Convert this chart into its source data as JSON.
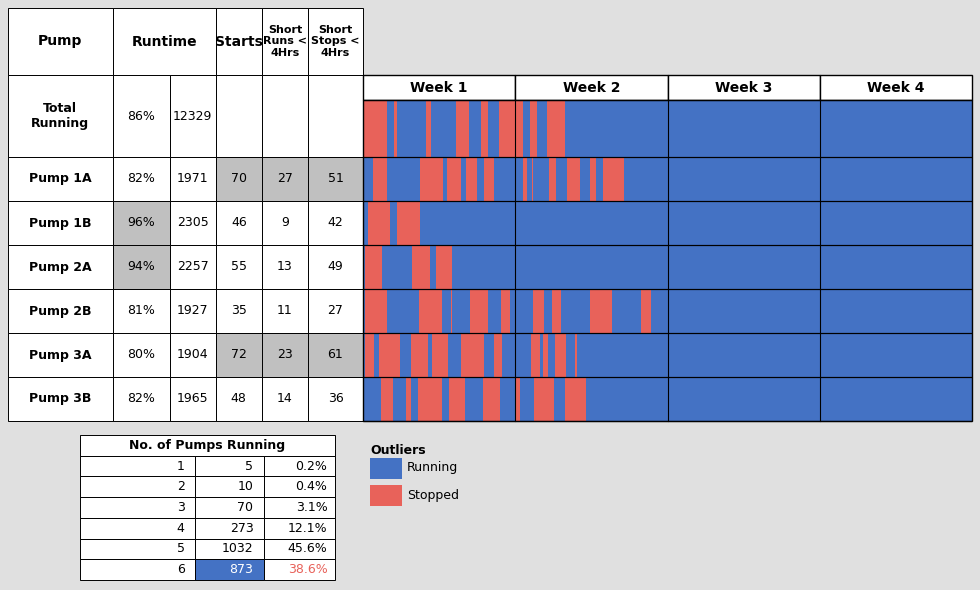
{
  "bg_color": "#e0e0e0",
  "running_color": "#4472c4",
  "stopped_color": "#e8625a",
  "white": "#ffffff",
  "gray_highlight": "#c0c0c0",
  "pumps": [
    "Total\nRunning",
    "Pump 1A",
    "Pump 1B",
    "Pump 2A",
    "Pump 2B",
    "Pump 3A",
    "Pump 3B"
  ],
  "runtime_pct": [
    "86%",
    "82%",
    "96%",
    "94%",
    "81%",
    "80%",
    "82%"
  ],
  "runtime_hrs": [
    "12329",
    "1971",
    "2305",
    "2257",
    "1927",
    "1904",
    "1965"
  ],
  "starts": [
    "",
    "70",
    "46",
    "55",
    "35",
    "72",
    "48"
  ],
  "short_runs": [
    "",
    "27",
    "9",
    "13",
    "11",
    "23",
    "14"
  ],
  "short_stops": [
    "",
    "51",
    "42",
    "49",
    "27",
    "61",
    "36"
  ],
  "weeks": [
    "Week 1",
    "Week 2",
    "Week 3",
    "Week 4"
  ],
  "n_cols": 2016,
  "pump_table_data": [
    [
      1,
      5,
      "0.2%"
    ],
    [
      2,
      10,
      "0.4%"
    ],
    [
      3,
      70,
      "3.1%"
    ],
    [
      4,
      273,
      "12.1%"
    ],
    [
      5,
      1032,
      "45.6%"
    ],
    [
      6,
      873,
      "38.6%"
    ]
  ],
  "pct_values": [
    0.86,
    0.82,
    0.96,
    0.94,
    0.81,
    0.8,
    0.82
  ],
  "highlight_pct_rows": [
    2,
    3
  ],
  "highlight_starts_rows": [
    1,
    5
  ],
  "highlight_sruns_rows": [
    1,
    5
  ],
  "highlight_sstops_rows": [
    1,
    5
  ]
}
